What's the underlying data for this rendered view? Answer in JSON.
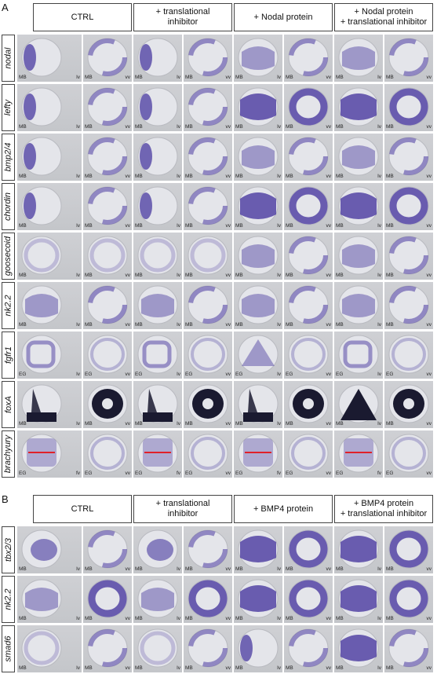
{
  "panel_a": {
    "letter": "A",
    "conditions": [
      {
        "lines": [
          "CTRL"
        ]
      },
      {
        "lines": [
          "+ translational",
          "inhibitor"
        ]
      },
      {
        "lines": [
          "+ Nodal protein"
        ]
      },
      {
        "lines": [
          "+ Nodal protein",
          "+ translational inhibitor"
        ]
      }
    ],
    "genes": [
      "nodal",
      "lefty",
      "bmp2/4",
      "chordin",
      "goosecoid",
      "nk2.2",
      "fgfr1",
      "foxA",
      "brachyury"
    ],
    "view_labels": [
      [
        "MB",
        "lv",
        "MB",
        "vv"
      ],
      [
        "MB",
        "lv",
        "MB",
        "vv"
      ],
      [
        "MB",
        "lv",
        "MB",
        "vv"
      ],
      [
        "MB",
        "lv",
        "MB",
        "vv"
      ],
      [
        "MB",
        "lv",
        "MB",
        "vv"
      ],
      [
        "MB",
        "lv",
        "MB",
        "vv"
      ],
      [
        "EG",
        "lv",
        "EG",
        "vv"
      ],
      [
        "MB",
        "lv",
        "MB",
        "vv"
      ],
      [
        "EG",
        "fv",
        "EG",
        "vv"
      ]
    ]
  },
  "panel_b": {
    "letter": "B",
    "conditions": [
      {
        "lines": [
          "CTRL"
        ]
      },
      {
        "lines": [
          "+ translational",
          "inhibitor"
        ]
      },
      {
        "lines": [
          "+ BMP4 protein"
        ]
      },
      {
        "lines": [
          "+ BMP4 protein",
          "+ translational inhibitor"
        ]
      }
    ],
    "genes": [
      "tbx2/3",
      "nk2.2",
      "smad6"
    ],
    "view_labels": [
      [
        "MB",
        "lv",
        "MB",
        "vv"
      ],
      [
        "MB",
        "lv",
        "MB",
        "vv"
      ],
      [
        "MB",
        "lv",
        "MB",
        "vv"
      ]
    ]
  },
  "colors": {
    "stain": "#4a3aa0",
    "stain_dark": "#1a1a30",
    "embryo": "#e4e5ea",
    "background": "#c8c9cd",
    "scale_line": "#e0212a"
  }
}
